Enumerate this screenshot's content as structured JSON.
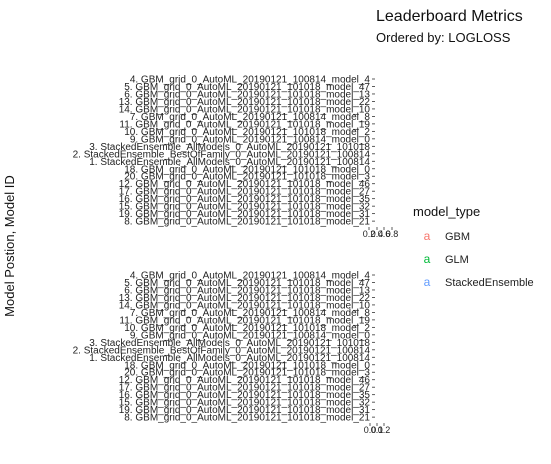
{
  "chart_data": {
    "type": "bar",
    "orientation": "horizontal",
    "title": "Leaderboard Metrics",
    "subtitle": "Ordered by: LOGLOSS",
    "ylabel": "Model Postion, Model ID",
    "categories": [
      "4. GBM_grid_0_AutoML_20190121_100814_model_4",
      "5. GBM_grid_0_AutoML_20190121_101018_model_47",
      "6. GBM_grid_0_AutoML_20190121_101018_model_13",
      "13. GBM_grid_0_AutoML_20190121_101018_model_22",
      "14. GBM_grid_0_AutoML_20190121_101018_model_10",
      "7. GBM_grid_0_AutoML_20190121_100814_model_8",
      "11. GBM_grid_0_AutoML_20190121_101018_model_19",
      "10. GBM_grid_0_AutoML_20190121_101018_model_2",
      "9. GBM_grid_0_AutoML_20190121_100814_model_0",
      "3. StackedEnsemble_AllModels_0_AutoML_20190121_101018",
      "2. StackedEnsemble_BestOfFamily_0_AutoML_20190121_100814",
      "1. StackedEnsemble_AllModels_0_AutoML_20190121_100814",
      "18. GBM_grid_0_AutoML_20190121_101018_model_0",
      "20. GBM_grid_0_AutoML_20190121_101018_model_3",
      "12. GBM_grid_0_AutoML_20190121_101018_model_46",
      "17. GBM_grid_0_AutoML_20190121_101018_model_27",
      "16. GBM_grid_0_AutoML_20190121_101018_model_35",
      "15. GBM_grid_0_AutoML_20190121_101018_model_32",
      "19. GBM_grid_0_AutoML_20190121_101018_model_31",
      "8. GBM_grid_0_AutoML_20190121_101018_model_21"
    ],
    "facets": [
      {
        "x_ticks": [
          "0.2",
          "0.4",
          "0.6",
          "0.8"
        ]
      },
      {
        "x_ticks": [
          "0.0",
          "0.1",
          "0.2"
        ]
      }
    ],
    "legend": {
      "title": "model_type",
      "position": "right",
      "entries": [
        {
          "label": "GBM",
          "key": "a",
          "color": "#F8766D"
        },
        {
          "label": "GLM",
          "key": "a",
          "color": "#00BA38"
        },
        {
          "label": "StackedEnsemble",
          "key": "a",
          "color": "#619CFF"
        }
      ]
    },
    "grid": false
  }
}
